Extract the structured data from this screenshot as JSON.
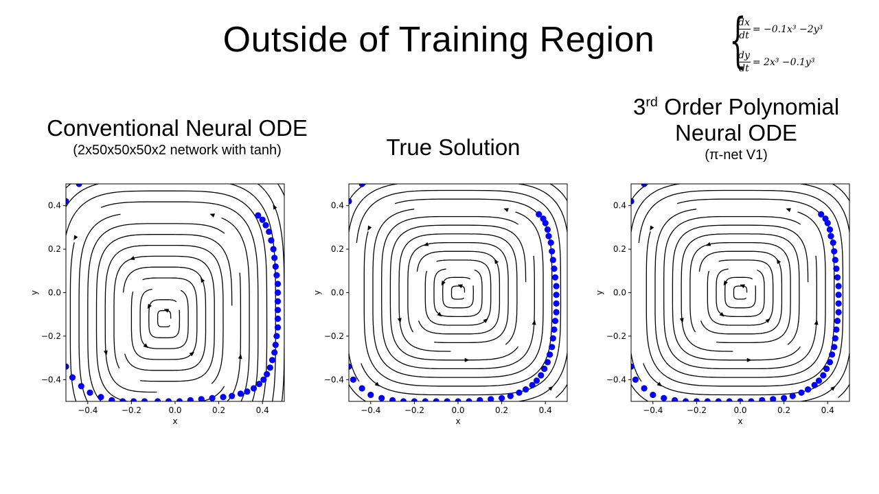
{
  "slide": {
    "title": "Outside of Training Region",
    "equation_dx_lhs_num": "dx",
    "equation_dx_lhs_den": "dt",
    "equation_dx_rhs": "= −0.1x³ −2y³",
    "equation_dy_lhs_num": "dy",
    "equation_dy_lhs_den": "dt",
    "equation_dy_rhs": "= 2x³ −0.1y³"
  },
  "panels": [
    {
      "title_line1": "Conventional Neural ODE",
      "title_line2": "",
      "subtitle": "(2x50x50x50x2  network with tanh)",
      "title_sup": ""
    },
    {
      "title_line1": "True Solution",
      "title_line2": "",
      "subtitle": "",
      "title_sup": ""
    },
    {
      "title_line1": "Order Polynomial",
      "title_line2": "Neural ODE",
      "subtitle": "(π-net V1)",
      "title_sup": "rd",
      "title_prefix": "3"
    }
  ],
  "chart_data": [
    {
      "type": "streamplot",
      "title": "Conventional Neural ODE",
      "xlabel": "x",
      "ylabel": "y",
      "xlim": [
        -0.5,
        0.5
      ],
      "ylim": [
        -0.5,
        0.5
      ],
      "xticks": [
        -0.4,
        -0.2,
        0.0,
        0.2,
        0.4
      ],
      "yticks": [
        -0.4,
        -0.2,
        0.0,
        0.2,
        0.4
      ],
      "xtick_labels": [
        "−0.4",
        "−0.2",
        "0.0",
        "0.2",
        "0.4"
      ],
      "ytick_labels": [
        "−0.4",
        "−0.2",
        "0.0",
        "0.2",
        "0.4"
      ],
      "center": [
        -0.05,
        -0.12
      ],
      "stream_color": "#000000",
      "trajectory_color": "#0000ff",
      "trajectory_points": [
        [
          -0.5,
          0.42
        ],
        [
          -0.44,
          0.5
        ],
        [
          -0.5,
          -0.34
        ],
        [
          -0.47,
          -0.39
        ],
        [
          -0.43,
          -0.43
        ],
        [
          -0.39,
          -0.46
        ],
        [
          -0.34,
          -0.48
        ],
        [
          -0.29,
          -0.495
        ],
        [
          -0.24,
          -0.5
        ],
        [
          -0.19,
          -0.5
        ],
        [
          -0.14,
          -0.5
        ],
        [
          -0.08,
          -0.5
        ],
        [
          -0.03,
          -0.5
        ],
        [
          0.02,
          -0.5
        ],
        [
          0.07,
          -0.495
        ],
        [
          0.12,
          -0.49
        ],
        [
          0.17,
          -0.485
        ],
        [
          0.22,
          -0.48
        ],
        [
          0.26,
          -0.475
        ],
        [
          0.3,
          -0.465
        ],
        [
          0.33,
          -0.455
        ],
        [
          0.36,
          -0.44
        ],
        [
          0.385,
          -0.42
        ],
        [
          0.405,
          -0.4
        ],
        [
          0.42,
          -0.375
        ],
        [
          0.435,
          -0.345
        ],
        [
          0.445,
          -0.31
        ],
        [
          0.455,
          -0.275
        ],
        [
          0.46,
          -0.24
        ],
        [
          0.465,
          -0.2
        ],
        [
          0.47,
          -0.16
        ],
        [
          0.47,
          -0.12
        ],
        [
          0.47,
          -0.08
        ],
        [
          0.47,
          -0.04
        ],
        [
          0.47,
          0.0
        ],
        [
          0.47,
          0.04
        ],
        [
          0.465,
          0.08
        ],
        [
          0.46,
          0.12
        ],
        [
          0.455,
          0.16
        ],
        [
          0.45,
          0.2
        ],
        [
          0.44,
          0.24
        ],
        [
          0.43,
          0.28
        ],
        [
          0.415,
          0.31
        ],
        [
          0.4,
          0.335
        ],
        [
          0.38,
          0.355
        ]
      ]
    },
    {
      "type": "streamplot",
      "title": "True Solution",
      "xlabel": "x",
      "ylabel": "y",
      "xlim": [
        -0.5,
        0.5
      ],
      "ylim": [
        -0.5,
        0.5
      ],
      "xticks": [
        -0.4,
        -0.2,
        0.0,
        0.2,
        0.4
      ],
      "yticks": [
        -0.4,
        -0.2,
        0.0,
        0.2,
        0.4
      ],
      "xtick_labels": [
        "−0.4",
        "−0.2",
        "0.0",
        "0.2",
        "0.4"
      ],
      "ytick_labels": [
        "−0.4",
        "−0.2",
        "0.0",
        "0.2",
        "0.4"
      ],
      "center": [
        0.0,
        0.0
      ],
      "stream_color": "#000000",
      "trajectory_color": "#0000ff",
      "trajectory_points": [
        [
          -0.5,
          0.42
        ],
        [
          -0.44,
          0.5
        ],
        [
          -0.5,
          -0.34
        ],
        [
          -0.48,
          -0.4
        ],
        [
          -0.44,
          -0.44
        ],
        [
          -0.4,
          -0.47
        ],
        [
          -0.35,
          -0.485
        ],
        [
          -0.3,
          -0.495
        ],
        [
          -0.25,
          -0.5
        ],
        [
          -0.2,
          -0.5
        ],
        [
          -0.15,
          -0.5
        ],
        [
          -0.1,
          -0.5
        ],
        [
          -0.05,
          -0.5
        ],
        [
          0.0,
          -0.5
        ],
        [
          0.05,
          -0.5
        ],
        [
          0.1,
          -0.495
        ],
        [
          0.15,
          -0.49
        ],
        [
          0.2,
          -0.485
        ],
        [
          0.24,
          -0.475
        ],
        [
          0.28,
          -0.46
        ],
        [
          0.31,
          -0.445
        ],
        [
          0.34,
          -0.425
        ],
        [
          0.36,
          -0.405
        ],
        [
          0.38,
          -0.38
        ],
        [
          0.395,
          -0.35
        ],
        [
          0.41,
          -0.32
        ],
        [
          0.42,
          -0.285
        ],
        [
          0.43,
          -0.25
        ],
        [
          0.435,
          -0.21
        ],
        [
          0.44,
          -0.17
        ],
        [
          0.445,
          -0.13
        ],
        [
          0.45,
          -0.09
        ],
        [
          0.45,
          -0.05
        ],
        [
          0.45,
          -0.01
        ],
        [
          0.45,
          0.03
        ],
        [
          0.445,
          0.07
        ],
        [
          0.44,
          0.11
        ],
        [
          0.435,
          0.15
        ],
        [
          0.43,
          0.19
        ],
        [
          0.425,
          0.23
        ],
        [
          0.415,
          0.26
        ],
        [
          0.41,
          0.29
        ],
        [
          0.4,
          0.32
        ],
        [
          0.39,
          0.34
        ],
        [
          0.37,
          0.36
        ]
      ]
    },
    {
      "type": "streamplot",
      "title": "3rd Order Polynomial Neural ODE",
      "xlabel": "x",
      "ylabel": "y",
      "xlim": [
        -0.5,
        0.5
      ],
      "ylim": [
        -0.5,
        0.5
      ],
      "xticks": [
        -0.4,
        -0.2,
        0.0,
        0.2,
        0.4
      ],
      "yticks": [
        -0.4,
        -0.2,
        0.0,
        0.2,
        0.4
      ],
      "xtick_labels": [
        "−0.4",
        "−0.2",
        "0.0",
        "0.2",
        "0.4"
      ],
      "ytick_labels": [
        "−0.4",
        "−0.2",
        "0.0",
        "0.2",
        "0.4"
      ],
      "center": [
        0.0,
        0.0
      ],
      "stream_color": "#000000",
      "trajectory_color": "#0000ff",
      "trajectory_points": [
        [
          -0.5,
          0.42
        ],
        [
          -0.44,
          0.5
        ],
        [
          -0.5,
          -0.34
        ],
        [
          -0.48,
          -0.4
        ],
        [
          -0.44,
          -0.44
        ],
        [
          -0.4,
          -0.47
        ],
        [
          -0.35,
          -0.485
        ],
        [
          -0.3,
          -0.495
        ],
        [
          -0.25,
          -0.5
        ],
        [
          -0.2,
          -0.5
        ],
        [
          -0.15,
          -0.5
        ],
        [
          -0.1,
          -0.5
        ],
        [
          -0.05,
          -0.5
        ],
        [
          0.0,
          -0.5
        ],
        [
          0.05,
          -0.5
        ],
        [
          0.1,
          -0.495
        ],
        [
          0.15,
          -0.49
        ],
        [
          0.2,
          -0.485
        ],
        [
          0.24,
          -0.475
        ],
        [
          0.28,
          -0.46
        ],
        [
          0.31,
          -0.445
        ],
        [
          0.34,
          -0.425
        ],
        [
          0.36,
          -0.405
        ],
        [
          0.38,
          -0.38
        ],
        [
          0.395,
          -0.35
        ],
        [
          0.41,
          -0.32
        ],
        [
          0.42,
          -0.285
        ],
        [
          0.43,
          -0.25
        ],
        [
          0.435,
          -0.21
        ],
        [
          0.44,
          -0.17
        ],
        [
          0.445,
          -0.13
        ],
        [
          0.45,
          -0.09
        ],
        [
          0.45,
          -0.05
        ],
        [
          0.45,
          -0.01
        ],
        [
          0.45,
          0.03
        ],
        [
          0.445,
          0.07
        ],
        [
          0.44,
          0.11
        ],
        [
          0.435,
          0.15
        ],
        [
          0.43,
          0.19
        ],
        [
          0.425,
          0.23
        ],
        [
          0.415,
          0.26
        ],
        [
          0.41,
          0.29
        ],
        [
          0.4,
          0.32
        ],
        [
          0.39,
          0.34
        ],
        [
          0.37,
          0.36
        ]
      ]
    }
  ]
}
